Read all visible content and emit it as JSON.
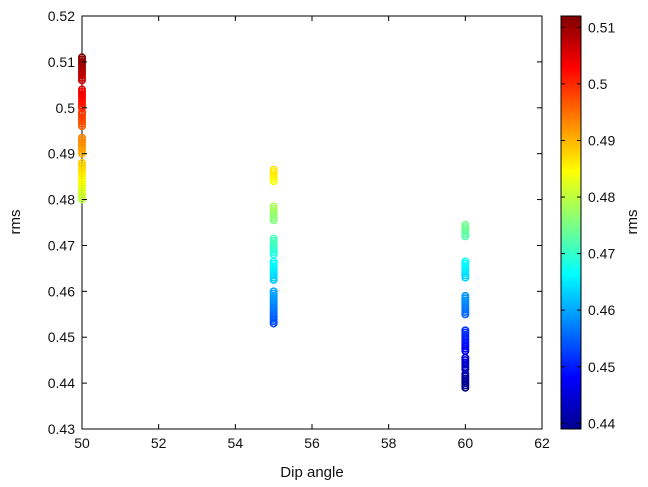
{
  "chart_data": {
    "type": "scatter",
    "title": "",
    "xlabel": "Dip angle",
    "ylabel": "rms",
    "xlim": [
      50,
      62
    ],
    "ylim": [
      0.43,
      0.52
    ],
    "x_ticks": [
      "50",
      "52",
      "54",
      "56",
      "58",
      "60",
      "62"
    ],
    "y_ticks": [
      "0.43",
      "0.44",
      "0.45",
      "0.46",
      "0.47",
      "0.48",
      "0.49",
      "0.5",
      "0.51",
      "0.52"
    ],
    "colorbar": {
      "label": "rms",
      "range": [
        0.439,
        0.512
      ],
      "colormap": "jet",
      "ticks": [
        "0.44",
        "0.45",
        "0.46",
        "0.47",
        "0.48",
        "0.49",
        "0.5",
        "0.51"
      ]
    },
    "marker": "open-circle",
    "series": [
      {
        "x": 50,
        "y": [
          0.48,
          0.4805,
          0.481,
          0.4815,
          0.482,
          0.4825,
          0.483,
          0.4835,
          0.484,
          0.4845,
          0.485,
          0.4855,
          0.486,
          0.4865,
          0.487,
          0.4875,
          0.488,
          0.49,
          0.4905,
          0.491,
          0.4915,
          0.492,
          0.4925,
          0.493,
          0.4935,
          0.496,
          0.4965,
          0.497,
          0.4975,
          0.498,
          0.4985,
          0.499,
          0.5,
          0.5005,
          0.501,
          0.5015,
          0.502,
          0.5025,
          0.503,
          0.5035,
          0.504,
          0.506,
          0.5065,
          0.507,
          0.5075,
          0.508,
          0.5085,
          0.509,
          0.5095,
          0.51,
          0.5105,
          0.511
        ]
      },
      {
        "x": 55,
        "y": [
          0.453,
          0.4535,
          0.454,
          0.4545,
          0.455,
          0.4555,
          0.456,
          0.4565,
          0.457,
          0.4575,
          0.458,
          0.4585,
          0.459,
          0.4595,
          0.46,
          0.4625,
          0.463,
          0.4635,
          0.464,
          0.4645,
          0.465,
          0.4655,
          0.466,
          0.4665,
          0.468,
          0.4685,
          0.469,
          0.4695,
          0.47,
          0.4705,
          0.471,
          0.4715,
          0.4755,
          0.476,
          0.4765,
          0.477,
          0.4775,
          0.478,
          0.4785,
          0.484,
          0.4845,
          0.485,
          0.4855,
          0.486,
          0.4865
        ]
      },
      {
        "x": 60,
        "y": [
          0.439,
          0.4395,
          0.44,
          0.4405,
          0.441,
          0.4415,
          0.442,
          0.443,
          0.4435,
          0.444,
          0.4445,
          0.445,
          0.4455,
          0.447,
          0.4475,
          0.448,
          0.4485,
          0.449,
          0.4495,
          0.45,
          0.4505,
          0.451,
          0.4515,
          0.455,
          0.4555,
          0.456,
          0.4565,
          0.457,
          0.4575,
          0.458,
          0.4585,
          0.459,
          0.463,
          0.4635,
          0.464,
          0.4645,
          0.465,
          0.4655,
          0.466,
          0.4665,
          0.472,
          0.4725,
          0.473,
          0.4735,
          0.474,
          0.4745
        ]
      }
    ]
  }
}
